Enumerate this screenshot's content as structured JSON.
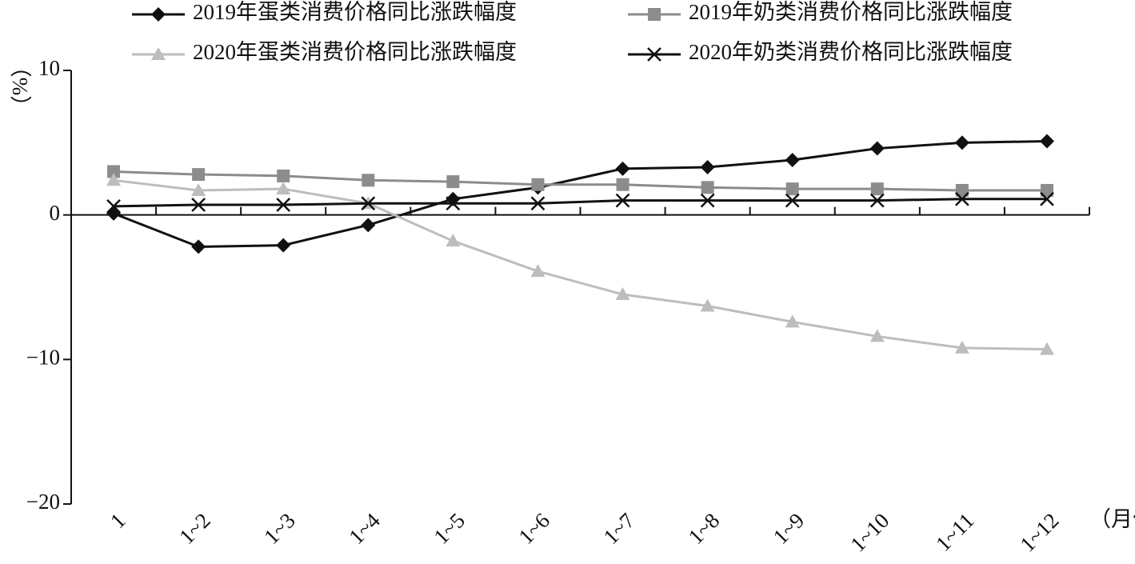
{
  "chart_data": {
    "type": "line",
    "y_label": "（%）",
    "x_unit": "（月份）",
    "categories": [
      "1",
      "1~2",
      "1~3",
      "1~4",
      "1~5",
      "1~6",
      "1~7",
      "1~8",
      "1~9",
      "1~10",
      "1~11",
      "1~12"
    ],
    "series": [
      {
        "name": "2019年蛋类消费价格同比涨跌幅度",
        "color": "#111111",
        "marker": "diamond",
        "values": [
          0.1,
          -2.2,
          -2.1,
          -0.7,
          1.1,
          1.9,
          3.2,
          3.3,
          3.8,
          4.6,
          5.0,
          5.1
        ]
      },
      {
        "name": "2019年奶类消费价格同比涨跌幅度",
        "color": "#8c8c8c",
        "marker": "square",
        "values": [
          3.0,
          2.8,
          2.7,
          2.4,
          2.3,
          2.1,
          2.1,
          1.9,
          1.8,
          1.8,
          1.7,
          1.7
        ]
      },
      {
        "name": "2020年蛋类消费价格同比涨跌幅度",
        "color": "#bdbdbd",
        "marker": "triangle",
        "values": [
          2.4,
          1.7,
          1.8,
          0.8,
          -1.8,
          -3.9,
          -5.5,
          -6.3,
          -7.4,
          -8.4,
          -9.2,
          -9.3
        ]
      },
      {
        "name": "2020年奶类消费价格同比涨跌幅度",
        "color": "#111111",
        "marker": "x",
        "values": [
          0.6,
          0.7,
          0.7,
          0.8,
          0.8,
          0.8,
          1.0,
          1.0,
          1.0,
          1.0,
          1.1,
          1.1
        ]
      }
    ],
    "ylim": [
      -20,
      10
    ],
    "yticks": [
      {
        "value": -20,
        "label": "−20"
      },
      {
        "value": -10,
        "label": "−10"
      },
      0,
      10
    ],
    "legend": "top"
  }
}
